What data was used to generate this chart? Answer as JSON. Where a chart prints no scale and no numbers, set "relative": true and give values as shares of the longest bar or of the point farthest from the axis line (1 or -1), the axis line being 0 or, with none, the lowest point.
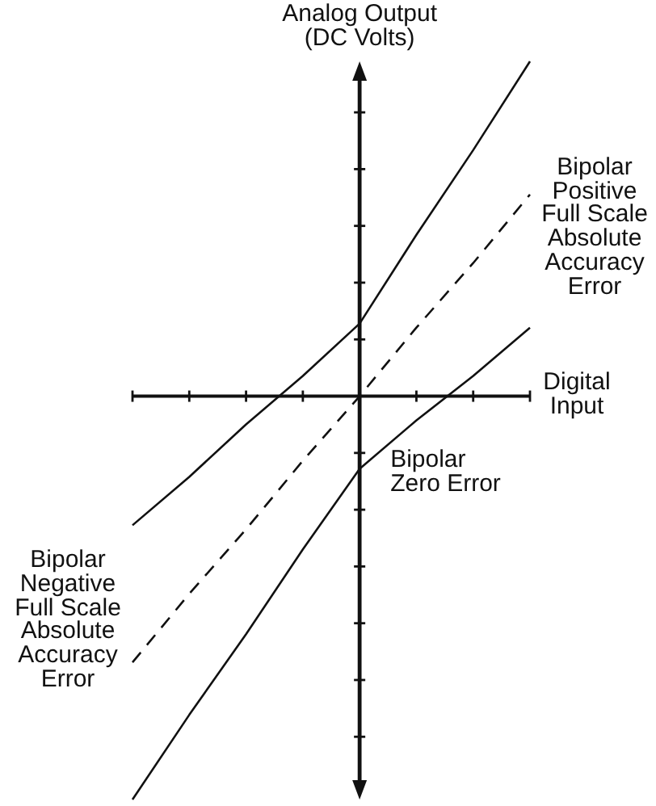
{
  "chart_data": {
    "type": "line",
    "relative": true,
    "ylabel": "Analog Output (DC Volts)",
    "xlabel": "Digital Input",
    "categories": [
      null,
      null,
      null,
      null,
      null,
      null,
      null,
      null
    ],
    "series": [
      {
        "color": "#111111",
        "values": [
          -0.32,
          -0.2,
          -0.07,
          0.05,
          0.18,
          0.4,
          0.61,
          0.83
        ]
      },
      {
        "color": "#111111",
        "line_style": "dashed",
        "values": [
          -0.66,
          -0.49,
          -0.33,
          -0.16,
          0,
          0.17,
          0.33,
          0.5
        ]
      },
      {
        "color": "#111111",
        "values": [
          -1,
          -0.79,
          -0.59,
          -0.38,
          -0.18,
          -0.06,
          0.05,
          0.17
        ]
      }
    ],
    "annotations": [
      "Bipolar Positive Full Scale Absolute Accuracy Error",
      "Bipolar Zero Error",
      "Bipolar Negative Full Scale Absolute Accuracy Error"
    ]
  }
}
